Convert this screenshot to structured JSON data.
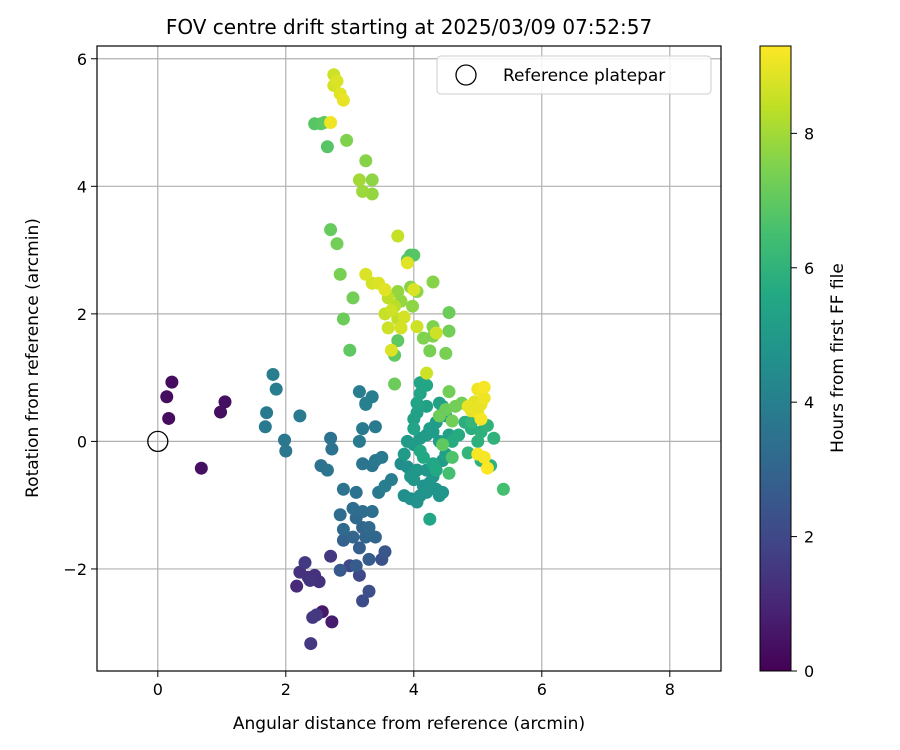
{
  "chart_data": {
    "type": "scatter",
    "title": "FOV centre drift starting at 2025/03/09 07:52:57",
    "xlabel": "Angular distance from reference (arcmin)",
    "ylabel": "Rotation from reference (arcmin)",
    "xlim": [
      -0.95,
      8.8
    ],
    "ylim": [
      -3.6,
      6.2
    ],
    "xticks": [
      0,
      2,
      4,
      6,
      8
    ],
    "yticks": [
      -2,
      0,
      2,
      4,
      6
    ],
    "grid": true,
    "legend": {
      "placement": "top-right",
      "entries": [
        "Reference platepar"
      ]
    },
    "reference_point": {
      "x": 0,
      "y": 0
    },
    "colorbar": {
      "label": "Hours from first FF file",
      "colormap": "viridis",
      "range": [
        0,
        9.3
      ],
      "ticks": [
        0,
        2,
        4,
        6,
        8
      ]
    },
    "points": [
      [
        0.22,
        0.93,
        0.3
      ],
      [
        0.14,
        0.7,
        0.3
      ],
      [
        0.17,
        0.36,
        0.3
      ],
      [
        1.05,
        0.62,
        0.4
      ],
      [
        0.98,
        0.46,
        0.4
      ],
      [
        0.68,
        -0.42,
        0.4
      ],
      [
        2.57,
        -2.67,
        0.6
      ],
      [
        2.72,
        -2.83,
        0.7
      ],
      [
        2.17,
        -2.27,
        1.1
      ],
      [
        2.22,
        -2.05,
        1.3
      ],
      [
        2.35,
        -2.13,
        1.3
      ],
      [
        2.45,
        -2.1,
        1.3
      ],
      [
        2.52,
        -2.2,
        1.3
      ],
      [
        2.38,
        -2.18,
        1.4
      ],
      [
        2.42,
        -2.76,
        1.5
      ],
      [
        2.48,
        -2.72,
        1.5
      ],
      [
        2.39,
        -3.17,
        1.5
      ],
      [
        2.7,
        -1.8,
        1.5
      ],
      [
        2.3,
        -1.9,
        1.6
      ],
      [
        3.0,
        -1.95,
        2.0
      ],
      [
        3.15,
        -2.1,
        2.0
      ],
      [
        3.2,
        -2.5,
        2.1
      ],
      [
        3.3,
        -2.35,
        2.2
      ],
      [
        3.5,
        -1.85,
        2.3
      ],
      [
        3.55,
        -1.73,
        2.5
      ],
      [
        2.85,
        -2.02,
        2.6
      ],
      [
        3.3,
        -1.85,
        2.7
      ],
      [
        3.1,
        -1.95,
        2.7
      ],
      [
        3.15,
        -1.67,
        2.8
      ],
      [
        2.9,
        -1.55,
        2.9
      ],
      [
        3.05,
        -1.5,
        3.0
      ],
      [
        3.2,
        -1.35,
        3.0
      ],
      [
        3.25,
        -1.5,
        3.1
      ],
      [
        3.4,
        -1.5,
        3.1
      ],
      [
        3.3,
        -1.35,
        3.2
      ],
      [
        2.9,
        -1.38,
        3.2
      ],
      [
        3.1,
        -1.2,
        3.2
      ],
      [
        3.05,
        -1.05,
        3.3
      ],
      [
        3.2,
        -1.1,
        3.3
      ],
      [
        2.85,
        -1.15,
        3.3
      ],
      [
        3.35,
        -1.1,
        3.4
      ],
      [
        2.9,
        -0.75,
        3.5
      ],
      [
        3.1,
        -0.8,
        3.5
      ],
      [
        2.55,
        -0.38,
        3.5
      ],
      [
        2.65,
        -0.45,
        3.6
      ],
      [
        3.2,
        -0.35,
        3.6
      ],
      [
        3.35,
        -0.38,
        3.6
      ],
      [
        3.4,
        -0.3,
        3.7
      ],
      [
        3.5,
        -0.25,
        3.8
      ],
      [
        3.15,
        0.0,
        3.8
      ],
      [
        3.2,
        0.2,
        3.8
      ],
      [
        3.4,
        0.23,
        3.8
      ],
      [
        3.45,
        -0.8,
        3.8
      ],
      [
        3.55,
        -0.7,
        3.9
      ],
      [
        3.65,
        -0.6,
        3.9
      ],
      [
        3.25,
        0.6,
        3.8
      ],
      [
        3.35,
        0.7,
        3.9
      ],
      [
        3.15,
        0.78,
        3.9
      ],
      [
        3.25,
        0.58,
        4.0
      ],
      [
        2.7,
        0.05,
        3.5
      ],
      [
        2.72,
        -0.12,
        3.5
      ],
      [
        2.0,
        -0.15,
        3.7
      ],
      [
        1.98,
        0.02,
        3.7
      ],
      [
        2.22,
        0.4,
        3.8
      ],
      [
        1.7,
        0.45,
        3.8
      ],
      [
        1.68,
        0.23,
        3.8
      ],
      [
        1.85,
        0.82,
        3.9
      ],
      [
        1.8,
        1.05,
        3.9
      ],
      [
        3.8,
        -0.35,
        4.5
      ],
      [
        3.9,
        -0.4,
        4.6
      ],
      [
        3.85,
        -0.85,
        4.6
      ],
      [
        3.95,
        -0.9,
        4.6
      ],
      [
        4.05,
        -0.95,
        4.7
      ],
      [
        4.1,
        -0.85,
        4.7
      ],
      [
        4.15,
        -0.7,
        4.7
      ],
      [
        4.2,
        -0.8,
        4.8
      ],
      [
        4.25,
        -0.65,
        4.8
      ],
      [
        4.35,
        -0.75,
        4.8
      ],
      [
        4.4,
        -0.85,
        4.8
      ],
      [
        4.45,
        -0.8,
        4.8
      ],
      [
        4.3,
        -0.55,
        4.9
      ],
      [
        4.2,
        -0.45,
        4.9
      ],
      [
        4.05,
        -0.45,
        4.9
      ],
      [
        3.95,
        -0.55,
        4.9
      ],
      [
        4.0,
        -0.6,
        4.9
      ],
      [
        3.85,
        -0.2,
        5.0
      ],
      [
        3.9,
        0.0,
        5.0
      ],
      [
        4.0,
        -0.05,
        5.0
      ],
      [
        4.1,
        0.05,
        5.0
      ],
      [
        4.2,
        0.1,
        5.0
      ],
      [
        4.25,
        0.2,
        5.1
      ],
      [
        4.3,
        0.15,
        5.1
      ],
      [
        4.35,
        0.3,
        5.1
      ],
      [
        4.4,
        0.0,
        5.1
      ],
      [
        4.45,
        -0.3,
        5.1
      ],
      [
        4.5,
        -0.2,
        5.2
      ],
      [
        4.55,
        0.1,
        5.2
      ],
      [
        4.5,
        0.4,
        5.2
      ],
      [
        4.45,
        0.55,
        5.2
      ],
      [
        4.4,
        0.6,
        5.3
      ],
      [
        4.2,
        0.55,
        5.3
      ],
      [
        4.05,
        0.45,
        5.3
      ],
      [
        4.0,
        0.35,
        5.3
      ],
      [
        4.0,
        0.2,
        5.4
      ],
      [
        4.05,
        0.6,
        5.4
      ],
      [
        4.1,
        0.75,
        5.4
      ],
      [
        4.1,
        0.92,
        5.4
      ],
      [
        4.2,
        0.88,
        5.5
      ],
      [
        4.25,
        -1.22,
        5.5
      ],
      [
        4.3,
        -0.35,
        5.5
      ],
      [
        4.35,
        -0.45,
        5.6
      ],
      [
        4.15,
        -0.25,
        5.6
      ],
      [
        4.1,
        -0.15,
        5.6
      ],
      [
        4.6,
        0.0,
        5.7
      ],
      [
        4.7,
        0.1,
        5.7
      ],
      [
        4.8,
        0.3,
        5.8
      ],
      [
        4.9,
        0.2,
        5.8
      ],
      [
        5.0,
        0.0,
        5.9
      ],
      [
        5.05,
        0.15,
        5.9
      ],
      [
        5.15,
        0.25,
        6.0
      ],
      [
        5.25,
        0.05,
        6.0
      ],
      [
        5.2,
        -0.38,
        6.0
      ],
      [
        5.05,
        -0.3,
        6.0
      ],
      [
        4.85,
        -0.18,
        6.1
      ],
      [
        4.9,
        0.3,
        6.1
      ],
      [
        5.4,
        -0.75,
        6.5
      ],
      [
        4.55,
        -0.5,
        6.5
      ],
      [
        4.6,
        -0.25,
        6.7
      ],
      [
        4.45,
        -0.05,
        7.0
      ],
      [
        4.4,
        0.4,
        7.2
      ],
      [
        4.5,
        0.5,
        7.2
      ],
      [
        4.55,
        0.78,
        7.3
      ],
      [
        4.6,
        0.32,
        7.3
      ],
      [
        4.65,
        0.55,
        7.3
      ],
      [
        4.75,
        0.6,
        7.3
      ],
      [
        4.55,
        2.02,
        7.2
      ],
      [
        4.55,
        1.73,
        7.3
      ],
      [
        4.5,
        1.38,
        7.4
      ],
      [
        4.25,
        1.42,
        7.4
      ],
      [
        4.3,
        1.65,
        7.5
      ],
      [
        4.3,
        1.8,
        7.5
      ],
      [
        4.15,
        1.62,
        7.5
      ],
      [
        4.3,
        2.5,
        7.6
      ],
      [
        3.95,
        2.42,
        7.6
      ],
      [
        4.05,
        2.35,
        7.7
      ],
      [
        3.98,
        2.12,
        7.7
      ],
      [
        3.8,
        2.2,
        7.8
      ],
      [
        3.75,
        2.35,
        7.8
      ],
      [
        3.7,
        1.35,
        7.0
      ],
      [
        3.75,
        1.58,
        7.0
      ],
      [
        3.7,
        0.9,
        7.2
      ],
      [
        3.95,
        2.92,
        6.7
      ],
      [
        4.0,
        2.92,
        6.8
      ],
      [
        3.9,
        2.85,
        6.8
      ],
      [
        3.0,
        1.43,
        7.0
      ],
      [
        2.9,
        1.92,
        7.2
      ],
      [
        3.05,
        2.25,
        7.3
      ],
      [
        2.85,
        2.62,
        7.4
      ],
      [
        2.8,
        3.1,
        7.3
      ],
      [
        2.7,
        3.32,
        7.1
      ],
      [
        2.65,
        4.62,
        6.8
      ],
      [
        2.45,
        4.98,
        6.8
      ],
      [
        2.55,
        4.98,
        6.9
      ],
      [
        2.6,
        5.0,
        7.0
      ],
      [
        2.95,
        4.72,
        7.5
      ],
      [
        3.25,
        4.4,
        7.6
      ],
      [
        3.35,
        4.1,
        7.7
      ],
      [
        3.35,
        3.88,
        7.8
      ],
      [
        3.2,
        3.92,
        7.9
      ],
      [
        3.15,
        4.1,
        8.0
      ],
      [
        3.75,
        3.22,
        8.5
      ],
      [
        3.7,
        2.12,
        8.3
      ],
      [
        3.75,
        1.92,
        8.4
      ],
      [
        3.6,
        2.25,
        8.4
      ],
      [
        3.55,
        2.0,
        8.5
      ],
      [
        3.6,
        1.78,
        8.6
      ],
      [
        3.65,
        2.05,
        8.6
      ],
      [
        3.8,
        1.78,
        8.7
      ],
      [
        3.85,
        1.95,
        8.7
      ],
      [
        3.65,
        1.43,
        8.8
      ],
      [
        3.35,
        2.48,
        8.7
      ],
      [
        3.25,
        2.62,
        8.8
      ],
      [
        3.45,
        2.48,
        8.8
      ],
      [
        3.55,
        2.38,
        8.9
      ],
      [
        3.9,
        2.8,
        8.9
      ],
      [
        4.0,
        2.38,
        8.8
      ],
      [
        4.05,
        1.8,
        8.6
      ],
      [
        4.35,
        1.7,
        8.6
      ],
      [
        4.2,
        1.07,
        8.6
      ],
      [
        4.95,
        0.62,
        8.9
      ],
      [
        4.9,
        0.48,
        8.9
      ],
      [
        4.85,
        0.55,
        9.0
      ],
      [
        5.0,
        0.45,
        9.0
      ],
      [
        5.05,
        0.58,
        9.0
      ],
      [
        5.1,
        0.68,
        9.1
      ],
      [
        5.0,
        0.82,
        9.1
      ],
      [
        5.1,
        0.85,
        9.2
      ],
      [
        5.05,
        0.35,
        9.2
      ],
      [
        5.0,
        -0.2,
        9.2
      ],
      [
        5.1,
        -0.25,
        9.2
      ],
      [
        5.15,
        -0.42,
        9.3
      ],
      [
        2.75,
        5.75,
        8.6
      ],
      [
        2.75,
        5.58,
        8.7
      ],
      [
        2.8,
        5.65,
        8.8
      ],
      [
        2.85,
        5.45,
        8.9
      ],
      [
        2.9,
        5.35,
        9.0
      ],
      [
        2.7,
        5.0,
        9.1
      ]
    ]
  }
}
